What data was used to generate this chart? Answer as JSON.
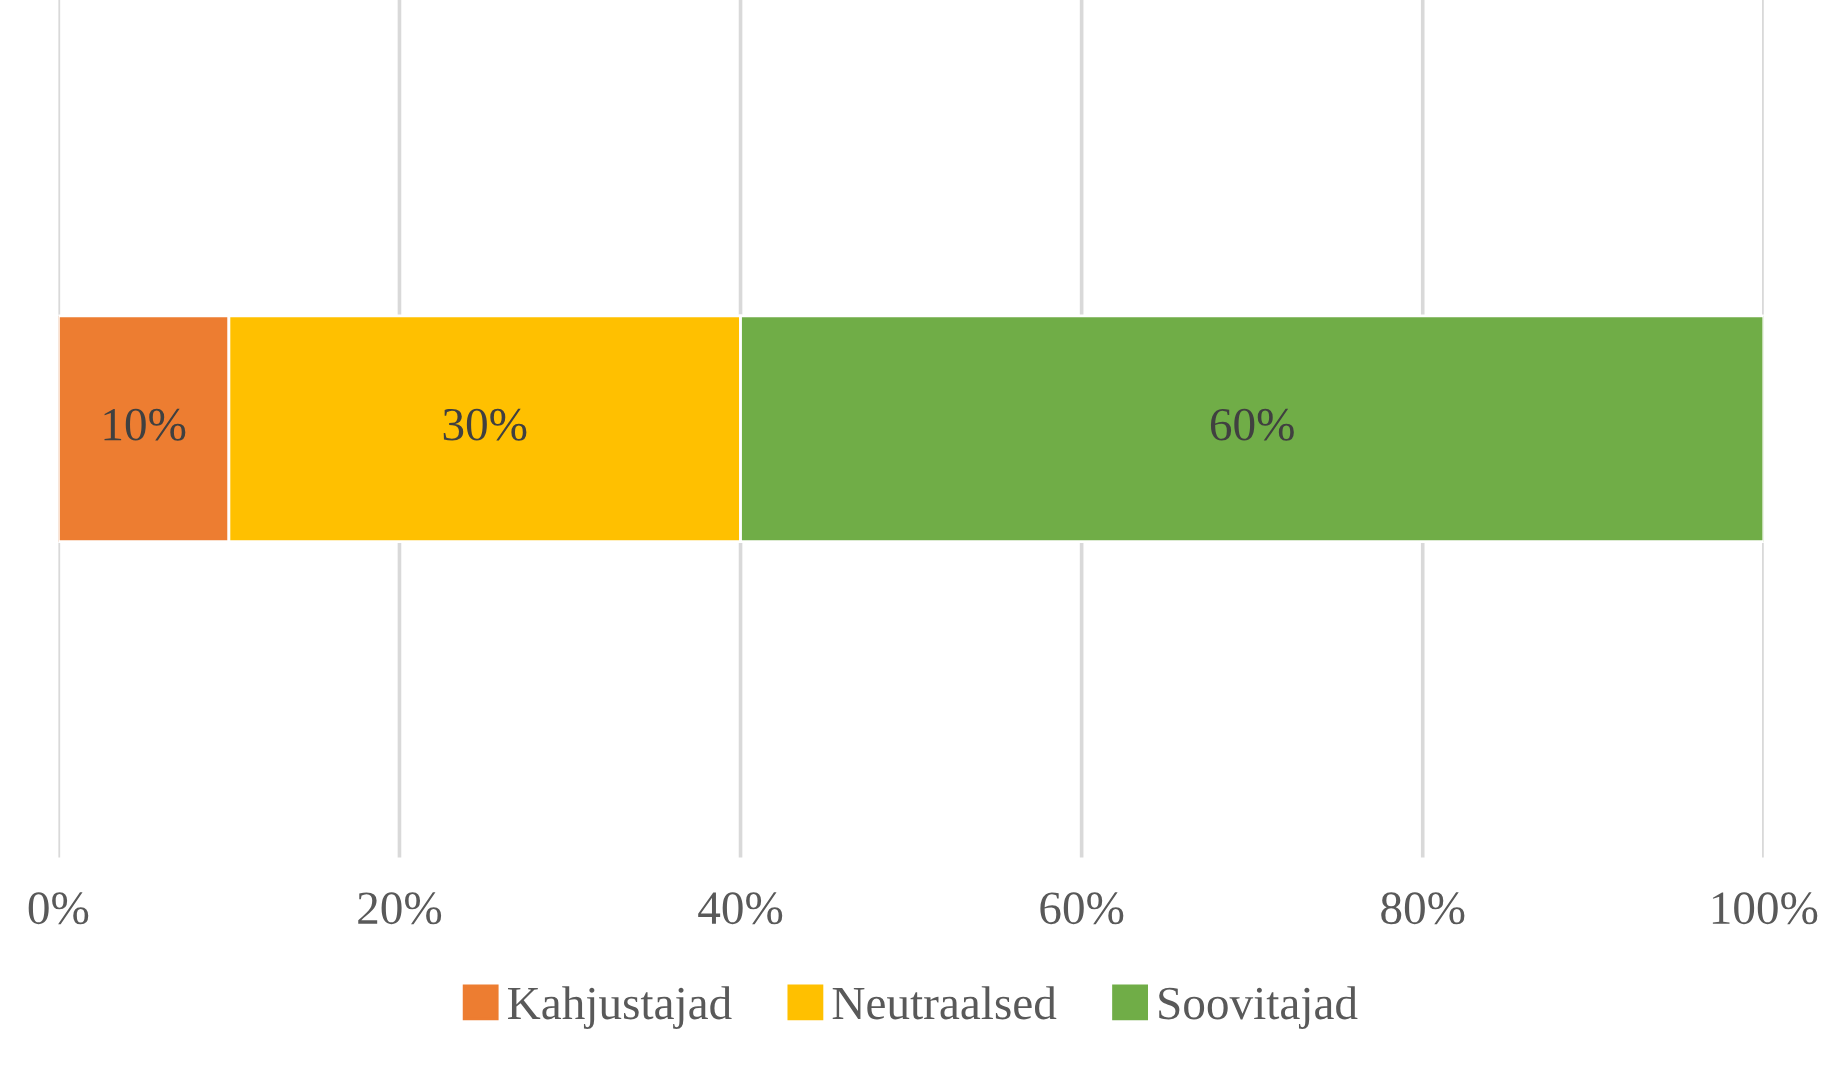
{
  "chart_data": {
    "type": "bar",
    "orientation": "horizontal",
    "stacked": true,
    "categories": [
      null
    ],
    "series": [
      {
        "name": "Kahjustajad",
        "color": "#ed7d31",
        "values": [
          10
        ],
        "value_labels": [
          "10%"
        ]
      },
      {
        "name": "Neutraalsed",
        "color": "#ffc000",
        "values": [
          30
        ],
        "value_labels": [
          "30%"
        ]
      },
      {
        "name": "Soovitajad",
        "color": "#70ad47",
        "values": [
          60
        ],
        "value_labels": [
          "60%"
        ]
      }
    ],
    "xlim": [
      0,
      100
    ],
    "xticks": [
      {
        "value": 0,
        "label": "0%"
      },
      {
        "value": 20,
        "label": "20%"
      },
      {
        "value": 40,
        "label": "40%"
      },
      {
        "value": 60,
        "label": "60%"
      },
      {
        "value": 80,
        "label": "80%"
      },
      {
        "value": 100,
        "label": "100%"
      }
    ],
    "grid": "x",
    "legend": "bottom"
  }
}
